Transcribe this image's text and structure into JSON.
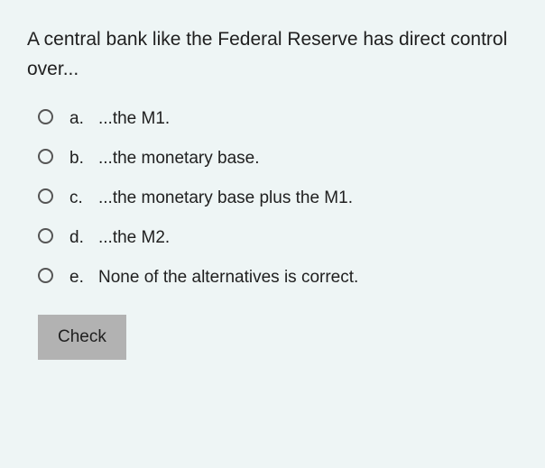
{
  "colors": {
    "background": "#eef5f5",
    "text": "#202020",
    "radio_border": "#555555",
    "button_bg": "#b2b2b2"
  },
  "typography": {
    "font_family": "Arial, Helvetica, sans-serif",
    "question_fontsize": 21,
    "option_fontsize": 19,
    "button_fontsize": 19
  },
  "question": {
    "text": "A central bank like the Federal Reserve has direct control over..."
  },
  "options": [
    {
      "letter": "a.",
      "text": "...the M1."
    },
    {
      "letter": "b.",
      "text": "...the monetary base."
    },
    {
      "letter": "c.",
      "text": "...the monetary base plus the M1."
    },
    {
      "letter": "d.",
      "text": "...the M2."
    },
    {
      "letter": "e.",
      "text": "None of the alternatives is correct."
    }
  ],
  "button": {
    "check_label": "Check"
  }
}
